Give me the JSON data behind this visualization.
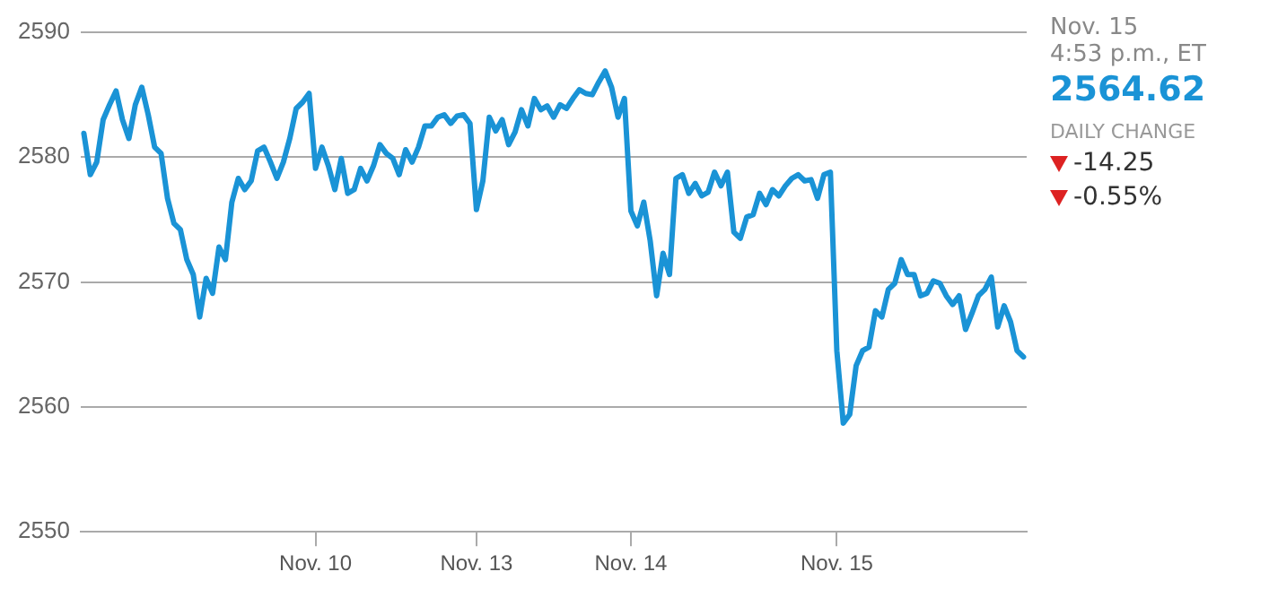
{
  "chart_data": {
    "type": "line",
    "color": "#1a93d6",
    "marker": "none",
    "line_style": "solid",
    "grid": "y",
    "legend": false,
    "ylim": [
      2550,
      2590
    ],
    "yticks": [
      2550,
      2560,
      2570,
      2580,
      2590
    ],
    "categories": [
      null,
      null,
      null,
      null,
      null,
      null,
      null,
      null,
      null,
      null,
      null,
      null,
      null,
      null,
      null,
      null,
      null,
      null,
      null,
      null,
      null,
      null,
      null,
      null,
      null,
      null,
      null,
      null,
      null,
      null,
      null,
      null,
      null,
      null,
      null,
      null,
      "Nov. 10",
      null,
      null,
      null,
      null,
      null,
      null,
      null,
      null,
      null,
      null,
      null,
      null,
      null,
      null,
      null,
      null,
      null,
      null,
      null,
      null,
      null,
      null,
      null,
      null,
      "Nov. 13",
      null,
      null,
      null,
      null,
      null,
      null,
      null,
      null,
      null,
      null,
      null,
      null,
      null,
      null,
      null,
      null,
      null,
      null,
      null,
      null,
      null,
      null,
      null,
      "Nov. 14",
      null,
      null,
      null,
      null,
      null,
      null,
      null,
      null,
      null,
      null,
      null,
      null,
      null,
      null,
      null,
      null,
      null,
      null,
      null,
      null,
      null,
      null,
      null,
      null,
      null,
      null,
      null,
      null,
      null,
      null,
      null,
      "Nov. 15",
      null,
      null,
      null,
      null,
      null,
      null,
      null,
      null,
      null,
      null,
      null,
      null,
      null,
      null,
      null,
      null,
      null,
      null,
      null,
      null,
      null,
      null,
      null,
      null,
      null,
      null,
      null,
      null,
      null
    ],
    "values": [
      2581.9,
      2578.6,
      2579.6,
      2583,
      2584.2,
      2585.3,
      2583,
      2581.5,
      2584.2,
      2585.6,
      2583.4,
      2580.8,
      2580.3,
      2576.7,
      2574.7,
      2574.2,
      2571.8,
      2570.6,
      2567.2,
      2570.3,
      2569.1,
      2572.8,
      2571.8,
      2576.4,
      2578.3,
      2577.4,
      2578.1,
      2580.5,
      2580.8,
      2579.6,
      2578.3,
      2579.6,
      2581.5,
      2583.9,
      2584.4,
      2585.1,
      2579.1,
      2580.8,
      2579.3,
      2577.4,
      2579.9,
      2577.1,
      2577.4,
      2579.1,
      2578.1,
      2579.3,
      2581,
      2580.3,
      2579.9,
      2578.6,
      2580.6,
      2579.6,
      2580.8,
      2582.5,
      2582.5,
      2583.2,
      2583.4,
      2582.7,
      2583.3,
      2583.4,
      2582.7,
      2575.8,
      2578.1,
      2583.2,
      2582.1,
      2583,
      2581,
      2582,
      2583.8,
      2582.5,
      2584.7,
      2583.8,
      2584.1,
      2583.2,
      2584.2,
      2583.9,
      2584.7,
      2585.4,
      2585.1,
      2585,
      2586,
      2586.9,
      2585.6,
      2583.2,
      2584.7,
      2575.7,
      2574.5,
      2576.4,
      2573.3,
      2568.9,
      2572.3,
      2570.6,
      2578.3,
      2578.6,
      2577.1,
      2577.9,
      2576.9,
      2577.2,
      2578.8,
      2577.7,
      2578.8,
      2574,
      2573.5,
      2575.2,
      2575.4,
      2577.1,
      2576.2,
      2577.4,
      2576.9,
      2577.7,
      2578.3,
      2578.6,
      2578.1,
      2578.2,
      2576.7,
      2578.6,
      2578.8,
      2564.5,
      2558.7,
      2559.4,
      2563.3,
      2564.5,
      2564.8,
      2567.7,
      2567.2,
      2569.4,
      2569.9,
      2571.8,
      2570.6,
      2570.6,
      2568.9,
      2569.1,
      2570.1,
      2569.9,
      2568.9,
      2568.2,
      2568.9,
      2566.2,
      2567.5,
      2568.9,
      2569.4,
      2570.4,
      2566.4,
      2568.1,
      2566.8,
      2564.5,
      2564
    ],
    "annotations": [
      "Nov. 15",
      "4:53 p.m., ET",
      "2564.62",
      "DAILY CHANGE",
      "-14.25",
      "-0.55%"
    ]
  }
}
